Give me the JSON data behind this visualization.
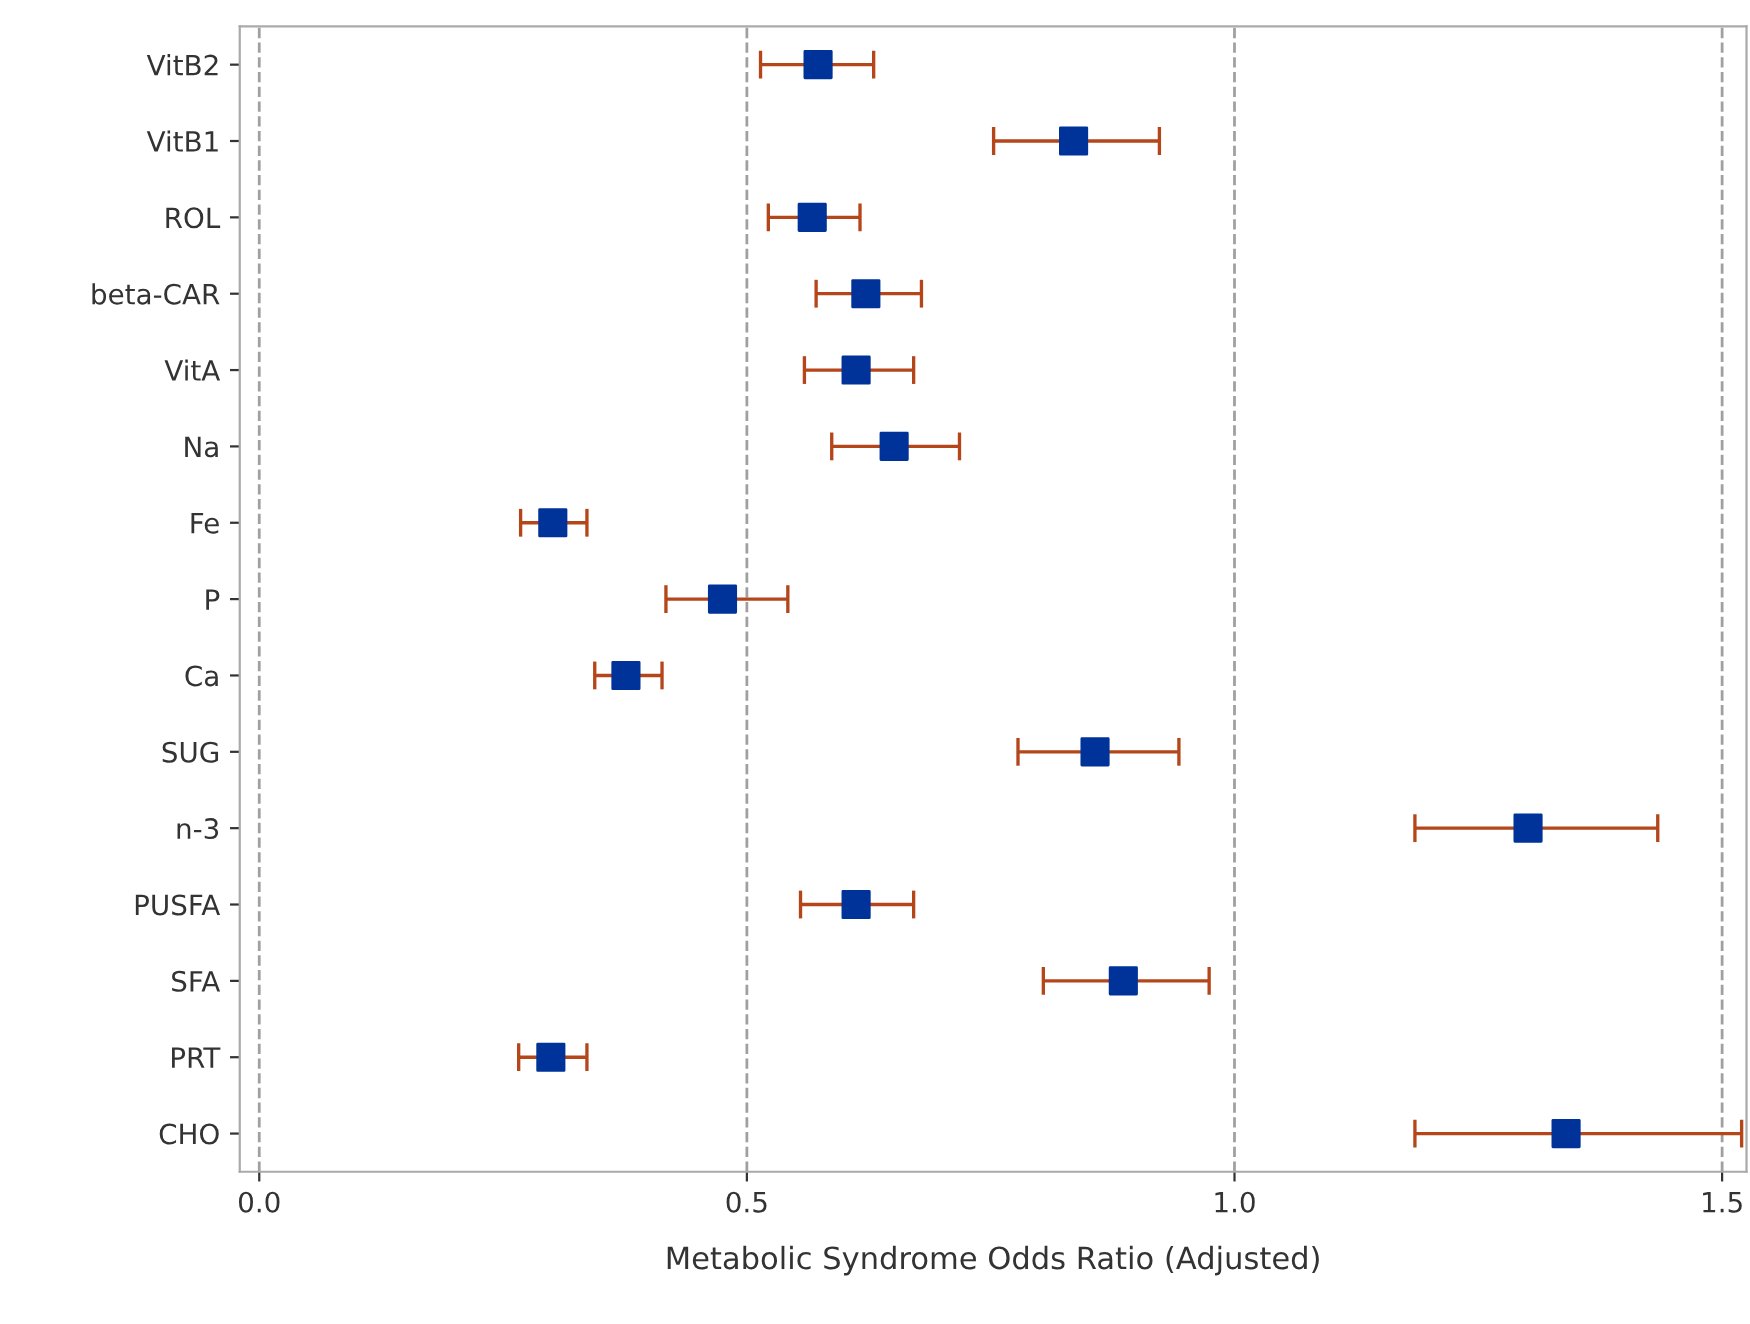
{
  "chart_data": {
    "type": "scatter",
    "orientation": "horizontal",
    "xlabel": "Metabolic Syndrome Odds Ratio (Adjusted)",
    "categories": [
      "VitB2",
      "VitB1",
      "ROL",
      "beta-CAR",
      "VitA",
      "Na",
      "Fe",
      "P",
      "Ca",
      "SUG",
      "n-3",
      "PUSFA",
      "SFA",
      "PRT",
      "CHO"
    ],
    "series": [
      {
        "color": "#003399",
        "values": [
          0.573,
          0.835,
          0.567,
          0.622,
          0.612,
          0.651,
          0.301,
          0.475,
          0.376,
          0.857,
          1.301,
          0.612,
          0.886,
          0.299,
          1.34
        ],
        "errors": [
          [
            0.514,
            0.63
          ],
          [
            0.753,
            0.923
          ],
          [
            0.522,
            0.616
          ],
          [
            0.571,
            0.679
          ],
          [
            0.559,
            0.671
          ],
          [
            0.587,
            0.718
          ],
          [
            0.268,
            0.336
          ],
          [
            0.417,
            0.542
          ],
          [
            0.344,
            0.413
          ],
          [
            0.778,
            0.943
          ],
          [
            1.185,
            1.434
          ],
          [
            0.555,
            0.671
          ],
          [
            0.804,
            0.974
          ],
          [
            0.266,
            0.336
          ],
          [
            1.185,
            1.52
          ]
        ]
      }
    ],
    "xlim": [
      -0.02,
      1.525
    ],
    "xticks": [
      {
        "value": 0,
        "label": "0.0"
      },
      {
        "value": 0.5,
        "label": "0.5"
      },
      {
        "value": 1.0,
        "label": "1.0"
      },
      {
        "value": 1.5,
        "label": "1.5"
      }
    ],
    "grid": "x",
    "line_style": "dashed",
    "marker": "square"
  }
}
